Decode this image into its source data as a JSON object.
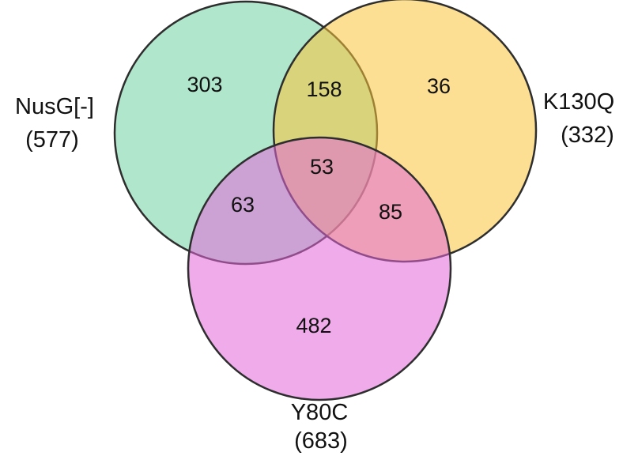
{
  "sets": [
    {
      "id": "nusg",
      "name": "NusG[-]",
      "total": "(577)",
      "color": "#6fd3a2",
      "stroke": "#2e2e2e"
    },
    {
      "id": "k130q",
      "name": "K130Q",
      "total": "(332)",
      "color": "#fcc43a",
      "stroke": "#2e2e2e"
    },
    {
      "id": "y80c",
      "name": "Y80C",
      "total": "(683)",
      "color": "#e468d8",
      "stroke": "#2e2e2e"
    }
  ],
  "regions": {
    "nusg_only": "303",
    "k130q_only": "36",
    "y80c_only": "482",
    "nusg_k130q": "158",
    "nusg_y80c": "63",
    "k130q_y80c": "85",
    "all_three": "53"
  }
}
